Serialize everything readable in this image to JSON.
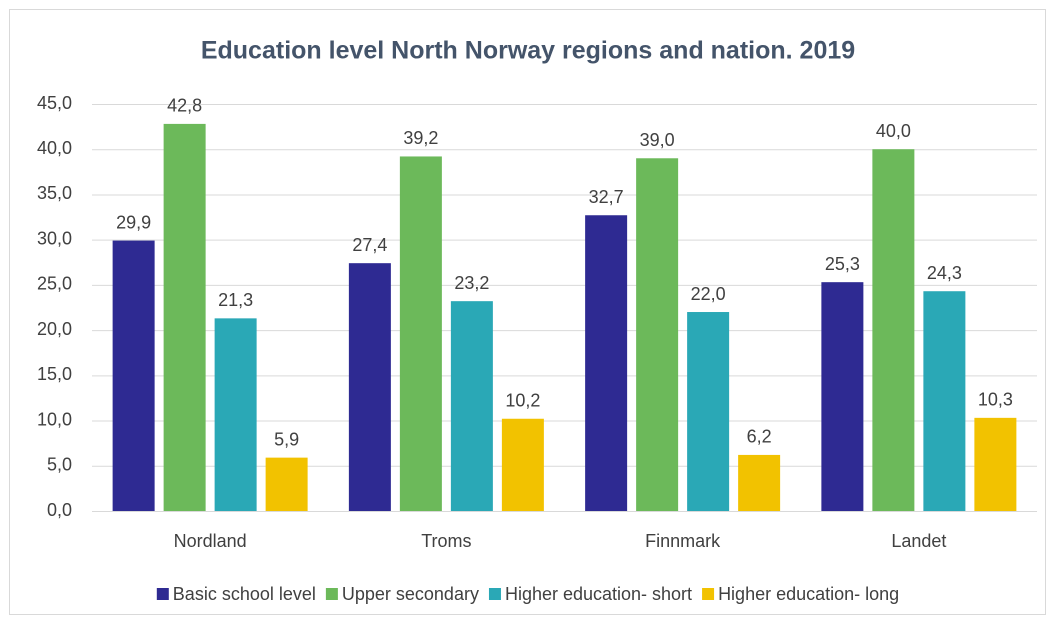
{
  "chart_data": {
    "type": "bar",
    "title": "Education level North Norway regions and nation. 2019",
    "categories": [
      "Nordland",
      "Troms",
      "Finnmark",
      "Landet"
    ],
    "series": [
      {
        "name": "Basic school level",
        "color": "#2e2a92",
        "values": [
          29.9,
          27.4,
          32.7,
          25.3
        ],
        "value_labels": [
          "29,9",
          "27,4",
          "32,7",
          "25,3"
        ]
      },
      {
        "name": "Upper secondary",
        "color": "#6cb95a",
        "values": [
          42.8,
          39.2,
          39.0,
          40.0
        ],
        "value_labels": [
          "42,8",
          "39,2",
          "39,0",
          "40,0"
        ]
      },
      {
        "name": "Higher education- short",
        "color": "#2aa8b6",
        "values": [
          21.3,
          23.2,
          22.0,
          24.3
        ],
        "value_labels": [
          "21,3",
          "23,2",
          "22,0",
          "24,3"
        ]
      },
      {
        "name": "Higher education- long",
        "color": "#f2c200",
        "values": [
          5.9,
          10.2,
          6.2,
          10.3
        ],
        "value_labels": [
          "5,9",
          "10,2",
          "6,2",
          "10,3"
        ]
      }
    ],
    "ylim": [
      0,
      45
    ],
    "yticks": [
      {
        "value": 0,
        "label": "0,0"
      },
      {
        "value": 5,
        "label": "5,0"
      },
      {
        "value": 10,
        "label": "10,0"
      },
      {
        "value": 15,
        "label": "15,0"
      },
      {
        "value": 20,
        "label": "20,0"
      },
      {
        "value": 25,
        "label": "25,0"
      },
      {
        "value": 30,
        "label": "30,0"
      },
      {
        "value": 35,
        "label": "35,0"
      },
      {
        "value": 40,
        "label": "40,0"
      },
      {
        "value": 45,
        "label": "45,0"
      }
    ],
    "grid": true,
    "legend": "bottom"
  }
}
